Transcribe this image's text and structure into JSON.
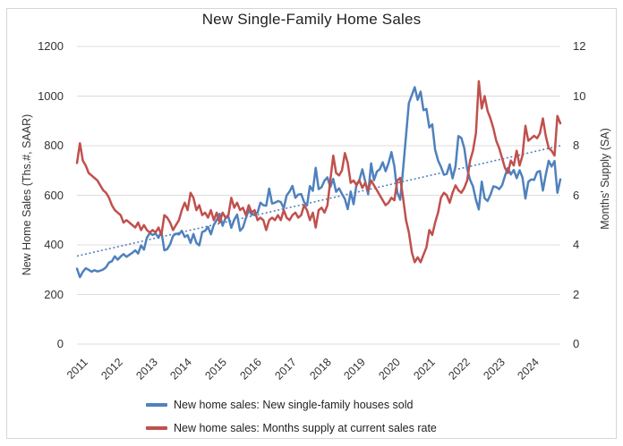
{
  "title": "New Single-Family Home Sales",
  "left_axis": {
    "title": "New Home Sales (Ths.#, SAAR)",
    "ticks": [
      0,
      200,
      400,
      600,
      800,
      1000,
      1200
    ],
    "min": 0,
    "max": 1200
  },
  "right_axis": {
    "title": "Months' Supply (SA)",
    "ticks": [
      0,
      2,
      4,
      6,
      8,
      10,
      12
    ],
    "min": 0,
    "max": 12
  },
  "x_axis": {
    "year_labels": [
      "2011",
      "2012",
      "2013",
      "2014",
      "2015",
      "2016",
      "2017",
      "2018",
      "2019",
      "2020",
      "2021",
      "2022",
      "2023",
      "2024"
    ]
  },
  "legend": [
    {
      "label": "New home sales: New single-family houses sold",
      "color": "#4F81BD"
    },
    {
      "label": "New home sales: Months supply at current sales rate",
      "color": "#C0504D"
    }
  ],
  "colors": {
    "sales_line": "#4F81BD",
    "supply_line": "#C0504D",
    "trend_line": "#4F81BD",
    "gridline": "#dcdcdc",
    "frame_border": "#d6d6d6",
    "text": "#333333"
  },
  "chart_data": {
    "type": "line",
    "title": "New Single-Family Home Sales",
    "frequency": "monthly",
    "x_start": "2011-01",
    "x_end": "2024-11",
    "grid": true,
    "legend_position": "bottom",
    "left_ylim": [
      0,
      1200
    ],
    "right_ylim": [
      0,
      12
    ],
    "series": [
      {
        "name": "New home sales: New single-family houses sold",
        "axis": "left",
        "color": "#4F81BD",
        "units": "thousands, SAAR",
        "values": [
          304,
          270,
          291,
          306,
          300,
          292,
          298,
          293,
          296,
          301,
          310,
          329,
          334,
          354,
          340,
          353,
          363,
          352,
          360,
          368,
          378,
          365,
          398,
          381,
          429,
          448,
          440,
          446,
          429,
          455,
          378,
          383,
          403,
          436,
          445,
          442,
          457,
          432,
          439,
          408,
          444,
          408,
          398,
          452,
          457,
          472,
          443,
          481,
          500,
          525,
          477,
          508,
          513,
          469,
          502,
          522,
          457,
          470,
          508,
          540,
          521,
          525,
          530,
          570,
          560,
          558,
          627,
          567,
          570,
          577,
          573,
          548,
          599,
          615,
          638,
          590,
          603,
          605,
          573,
          559,
          637,
          618,
          711,
          625,
          633,
          659,
          672,
          633,
          666,
          614,
          628,
          606,
          585,
          544,
          615,
          564,
          644,
          662,
          705,
          656,
          604,
          729,
          661,
          696,
          705,
          733,
          697,
          730,
          774,
          716,
          612,
          582,
          704,
          840,
          972,
          1004,
          1036,
          985,
          1018,
          943,
          948,
          873,
          886,
          784,
          740,
          715,
          683,
          686,
          725,
          668,
          717,
          839,
          831,
          790,
          707,
          662,
          636,
          582,
          543,
          655,
          588,
          577,
          602,
          636,
          633,
          625,
          640,
          679,
          710,
          684,
          702,
          669,
          701,
          672,
          587,
          654,
          664,
          662,
          693,
          698,
          619,
          682,
          739,
          716,
          738,
          610,
          664
        ]
      },
      {
        "name": "New home sales: Months supply at current sales rate",
        "axis": "right",
        "color": "#C0504D",
        "units": "months",
        "values": [
          7.3,
          8.1,
          7.4,
          7.2,
          6.9,
          6.8,
          6.7,
          6.6,
          6.4,
          6.2,
          6.1,
          5.9,
          5.6,
          5.4,
          5.3,
          5.2,
          4.9,
          5.0,
          4.9,
          4.8,
          4.7,
          4.9,
          4.6,
          4.8,
          4.6,
          4.5,
          4.6,
          4.5,
          4.7,
          4.4,
          5.2,
          5.1,
          4.9,
          4.6,
          4.8,
          5.0,
          5.4,
          5.7,
          5.4,
          6.1,
          5.9,
          5.4,
          5.6,
          5.2,
          5.3,
          5.1,
          5.4,
          5.0,
          5.3,
          4.9,
          5.3,
          5.1,
          5.2,
          5.9,
          5.5,
          5.7,
          5.4,
          5.5,
          5.2,
          5.6,
          5.3,
          5.4,
          5.0,
          5.1,
          5.0,
          4.6,
          5.0,
          5.1,
          5.0,
          5.2,
          5.0,
          5.4,
          5.1,
          5.0,
          5.2,
          5.3,
          5.1,
          5.2,
          5.6,
          5.4,
          5.0,
          5.3,
          4.7,
          5.4,
          5.5,
          5.3,
          5.6,
          6.6,
          7.6,
          6.9,
          6.8,
          7.0,
          7.7,
          7.3,
          6.5,
          6.6,
          6.4,
          6.6,
          6.3,
          6.5,
          6.2,
          6.6,
          6.4,
          6.2,
          6.0,
          5.8,
          5.6,
          5.7,
          5.9,
          5.8,
          6.6,
          6.7,
          5.9,
          5.0,
          4.5,
          3.7,
          3.3,
          3.5,
          3.3,
          3.6,
          3.9,
          4.6,
          4.4,
          4.9,
          5.3,
          5.9,
          6.1,
          6.0,
          5.7,
          6.1,
          6.4,
          6.2,
          6.1,
          6.3,
          6.6,
          7.4,
          7.8,
          8.5,
          10.6,
          9.5,
          10.0,
          9.4,
          9.1,
          8.7,
          8.2,
          7.9,
          7.5,
          7.1,
          6.9,
          7.4,
          7.2,
          7.8,
          7.2,
          7.6,
          8.8,
          8.2,
          8.3,
          8.4,
          8.3,
          8.5,
          9.1,
          8.4,
          7.9,
          7.8,
          7.6,
          9.2,
          8.9
        ]
      }
    ],
    "trendline": {
      "applies_to": "New home sales: New single-family houses sold",
      "style": "dotted",
      "axis": "left",
      "start_value": 355,
      "end_value": 800,
      "color": "#4F81BD"
    }
  }
}
